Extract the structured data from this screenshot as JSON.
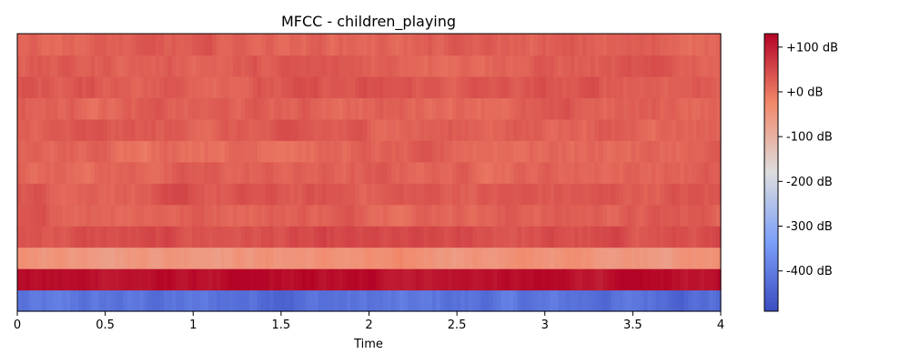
{
  "chart_data": {
    "type": "heatmap",
    "title": "MFCC - children_playing",
    "xlabel": "Time",
    "ylabel": "",
    "xlim": [
      0,
      4
    ],
    "x_ticks": [
      0,
      0.5,
      1,
      1.5,
      2,
      2.5,
      3,
      3.5,
      4
    ],
    "x_tick_labels": [
      "0",
      "0.5",
      "1",
      "1.5",
      "2",
      "2.5",
      "3",
      "3.5",
      "4"
    ],
    "yaxis_visible": false,
    "colormap": "coolwarm",
    "colorbar": {
      "vmin": -490,
      "vmax": 130,
      "ticks": [
        100,
        0,
        -100,
        -200,
        -300,
        -400
      ],
      "tick_labels": [
        "+100 dB",
        "+0 dB",
        "-100 dB",
        "-200 dB",
        "-300 dB",
        "-400 dB"
      ]
    },
    "n_coefficients": 13,
    "n_frames": 173,
    "coefficient_mean_levels_dB": [
      -420,
      115,
      -45,
      40,
      25,
      30,
      20,
      15,
      25,
      20,
      30,
      25,
      20
    ],
    "note_rows_order": "row 0 = bottom (coefficient 0), row 12 = top"
  }
}
